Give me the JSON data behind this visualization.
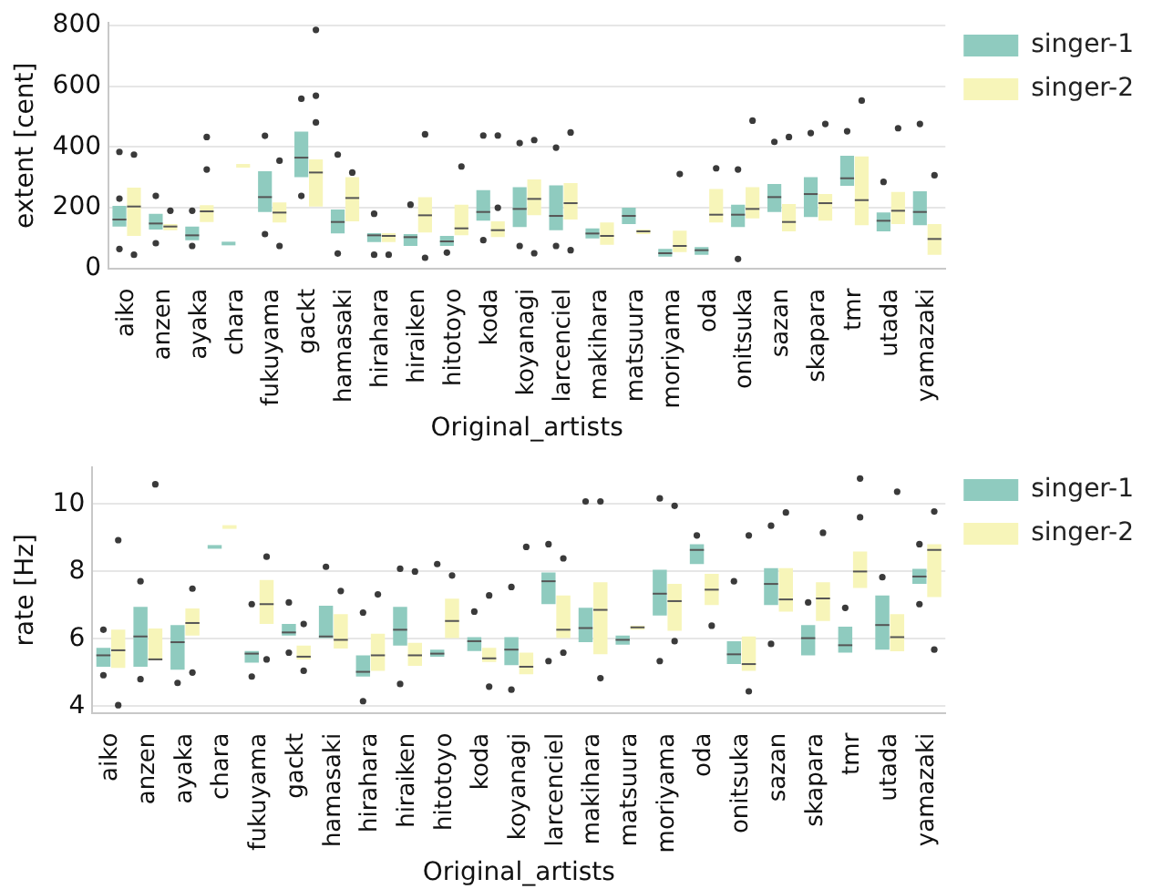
{
  "chart_data": [
    {
      "type": "box",
      "ylabel": "extent [cent]",
      "xlabel": "Original_artists",
      "categories": [
        "aiko",
        "anzen",
        "ayaka",
        "chara",
        "fukuyama",
        "gackt",
        "hamasaki",
        "hirahara",
        "hiraiken",
        "hitotoyo",
        "koda",
        "koyanagi",
        "larcenciel",
        "makihara",
        "matsuura",
        "moriyama",
        "oda",
        "onitsuka",
        "sazan",
        "skapara",
        "tmr",
        "utada",
        "yamazaki"
      ],
      "ylim": [
        0,
        810
      ],
      "yticks": [
        0,
        200,
        400,
        600,
        800
      ],
      "grid": "y",
      "legend": "top right",
      "series": [
        {
          "name": "singer-1",
          "color": "#8fcbbf",
          "boxes": [
            {
              "low": 138,
              "q1": 138,
              "median": 161,
              "q3": 206,
              "high": 206,
              "outliers": [
                384,
                230,
                64
              ]
            },
            {
              "low": 128,
              "q1": 128,
              "median": 148,
              "q3": 180,
              "high": 180,
              "outliers": [
                239,
                83
              ]
            },
            {
              "low": 93,
              "q1": 93,
              "median": 109,
              "q3": 138,
              "high": 138,
              "outliers": [
                190,
                74
              ]
            },
            {
              "low": 82,
              "q1": 82,
              "median": 82,
              "q3": 82,
              "high": 82
            },
            {
              "low": 186,
              "q1": 186,
              "median": 235,
              "q3": 320,
              "high": 320,
              "outliers": [
                437,
                113
              ]
            },
            {
              "low": 301,
              "q1": 301,
              "median": 365,
              "q3": 451,
              "high": 451,
              "outliers": [
                559,
                239
              ]
            },
            {
              "low": 115,
              "q1": 115,
              "median": 153,
              "q3": 194,
              "high": 194,
              "outliers": [
                375,
                49
              ]
            },
            {
              "low": 87,
              "q1": 87,
              "median": 109,
              "q3": 116,
              "high": 116,
              "outliers": [
                180,
                45
              ]
            },
            {
              "low": 74,
              "q1": 74,
              "median": 103,
              "q3": 113,
              "high": 113,
              "outliers": [
                210
              ]
            },
            {
              "low": 74,
              "q1": 74,
              "median": 89,
              "q3": 107,
              "high": 107,
              "outliers": [
                52
              ]
            },
            {
              "low": 157,
              "q1": 157,
              "median": 186,
              "q3": 258,
              "high": 258,
              "outliers": [
                438,
                93
              ]
            },
            {
              "low": 136,
              "q1": 136,
              "median": 196,
              "q3": 268,
              "high": 268,
              "outliers": [
                413,
                74
              ]
            },
            {
              "low": 126,
              "q1": 126,
              "median": 173,
              "q3": 274,
              "high": 274,
              "outliers": [
                398,
                74
              ]
            },
            {
              "low": 99,
              "q1": 99,
              "median": 115,
              "q3": 132,
              "high": 132
            },
            {
              "low": 146,
              "q1": 146,
              "median": 173,
              "q3": 200,
              "high": 200
            },
            {
              "low": 39,
              "q1": 39,
              "median": 50,
              "q3": 64,
              "high": 64
            },
            {
              "low": 45,
              "q1": 45,
              "median": 60,
              "q3": 70,
              "high": 70
            },
            {
              "low": 136,
              "q1": 136,
              "median": 177,
              "q3": 210,
              "high": 210,
              "outliers": [
                326,
                31
              ]
            },
            {
              "low": 186,
              "q1": 186,
              "median": 235,
              "q3": 278,
              "high": 278,
              "outliers": [
                417
              ]
            },
            {
              "low": 169,
              "q1": 169,
              "median": 245,
              "q3": 301,
              "high": 301,
              "outliers": [
                446
              ]
            },
            {
              "low": 272,
              "q1": 272,
              "median": 297,
              "q3": 371,
              "high": 371,
              "outliers": [
                452
              ]
            },
            {
              "low": 122,
              "q1": 122,
              "median": 157,
              "q3": 184,
              "high": 184,
              "outliers": [
                285
              ]
            },
            {
              "low": 142,
              "q1": 142,
              "median": 186,
              "q3": 254,
              "high": 254,
              "outliers": [
                476
              ]
            }
          ]
        },
        {
          "name": "singer-2",
          "color": "#f7f5b9",
          "boxes": [
            {
              "low": 107,
              "q1": 107,
              "median": 204,
              "q3": 266,
              "high": 266,
              "outliers": [
                375,
                45
              ]
            },
            {
              "low": 126,
              "q1": 126,
              "median": 138,
              "q3": 146,
              "high": 146,
              "outliers": [
                190
              ]
            },
            {
              "low": 153,
              "q1": 153,
              "median": 188,
              "q3": 208,
              "high": 208,
              "outliers": [
                433,
                326
              ]
            },
            {
              "low": 338,
              "q1": 338,
              "median": 338,
              "q3": 338,
              "high": 338
            },
            {
              "low": 151,
              "q1": 151,
              "median": 184,
              "q3": 217,
              "high": 217,
              "outliers": [
                355,
                74
              ]
            },
            {
              "low": 204,
              "q1": 204,
              "median": 316,
              "q3": 359,
              "high": 359,
              "outliers": [
                786,
                569,
                481
              ]
            },
            {
              "low": 155,
              "q1": 155,
              "median": 232,
              "q3": 301,
              "high": 301,
              "outliers": [
                316
              ]
            },
            {
              "low": 87,
              "q1": 87,
              "median": 107,
              "q3": 116,
              "high": 116,
              "outliers": [
                45
              ]
            },
            {
              "low": 118,
              "q1": 118,
              "median": 175,
              "q3": 235,
              "high": 235,
              "outliers": [
                442,
                35
              ]
            },
            {
              "low": 109,
              "q1": 109,
              "median": 132,
              "q3": 210,
              "high": 210,
              "outliers": [
                336
              ]
            },
            {
              "low": 103,
              "q1": 103,
              "median": 126,
              "q3": 155,
              "high": 155,
              "outliers": [
                438,
                200
              ]
            },
            {
              "low": 175,
              "q1": 175,
              "median": 229,
              "q3": 293,
              "high": 293,
              "outliers": [
                423,
                50
              ]
            },
            {
              "low": 161,
              "q1": 161,
              "median": 215,
              "q3": 281,
              "high": 281,
              "outliers": [
                448,
                60
              ]
            },
            {
              "low": 78,
              "q1": 78,
              "median": 107,
              "q3": 151,
              "high": 151
            },
            {
              "low": 113,
              "q1": 113,
              "median": 122,
              "q3": 128,
              "high": 128
            },
            {
              "low": 54,
              "q1": 54,
              "median": 74,
              "q3": 124,
              "high": 124,
              "outliers": [
                311
              ]
            },
            {
              "low": 151,
              "q1": 151,
              "median": 177,
              "q3": 262,
              "high": 262,
              "outliers": [
                330
              ]
            },
            {
              "low": 165,
              "q1": 165,
              "median": 196,
              "q3": 268,
              "high": 268,
              "outliers": [
                487
              ]
            },
            {
              "low": 122,
              "q1": 122,
              "median": 153,
              "q3": 212,
              "high": 212,
              "outliers": [
                433
              ]
            },
            {
              "low": 157,
              "q1": 157,
              "median": 215,
              "q3": 245,
              "high": 245,
              "outliers": [
                476
              ]
            },
            {
              "low": 142,
              "q1": 142,
              "median": 225,
              "q3": 369,
              "high": 369,
              "outliers": [
                553
              ]
            },
            {
              "low": 146,
              "q1": 146,
              "median": 190,
              "q3": 252,
              "high": 252,
              "outliers": [
                462
              ]
            },
            {
              "low": 45,
              "q1": 45,
              "median": 97,
              "q3": 146,
              "high": 146,
              "outliers": [
                307
              ]
            }
          ]
        }
      ]
    },
    {
      "type": "box",
      "ylabel": "rate [Hz]",
      "xlabel": "Original_artists",
      "categories": [
        "aiko",
        "anzen",
        "ayaka",
        "chara",
        "fukuyama",
        "gackt",
        "hamasaki",
        "hirahara",
        "hiraiken",
        "hitotoyo",
        "koda",
        "koyanagi",
        "larcenciel",
        "makihara",
        "matsuura",
        "moriyama",
        "oda",
        "onitsuka",
        "sazan",
        "skapara",
        "tmr",
        "utada",
        "yamazaki"
      ],
      "ylim": [
        3.8,
        11.1
      ],
      "yticks": [
        4,
        6,
        8,
        10
      ],
      "grid": "y",
      "legend": "top right",
      "series": [
        {
          "name": "singer-1",
          "color": "#8fcbbf",
          "boxes": [
            {
              "low": 5.17,
              "q1": 5.17,
              "median": 5.51,
              "q3": 5.73,
              "high": 5.73,
              "outliers": [
                6.27,
                4.92
              ]
            },
            {
              "low": 5.17,
              "q1": 5.17,
              "median": 6.07,
              "q3": 6.95,
              "high": 6.95,
              "outliers": [
                7.71,
                4.8
              ]
            },
            {
              "low": 5.08,
              "q1": 5.08,
              "median": 5.9,
              "q3": 6.41,
              "high": 6.41,
              "outliers": [
                4.69
              ]
            },
            {
              "low": 8.73,
              "q1": 8.73,
              "median": 8.73,
              "q3": 8.73,
              "high": 8.73
            },
            {
              "low": 5.29,
              "q1": 5.29,
              "median": 5.56,
              "q3": 5.64,
              "high": 5.64,
              "outliers": [
                7.03,
                4.88
              ]
            },
            {
              "low": 6.1,
              "q1": 6.1,
              "median": 6.19,
              "q3": 6.44,
              "high": 6.44,
              "outliers": [
                7.08,
                5.59
              ]
            },
            {
              "low": 6.02,
              "q1": 6.02,
              "median": 6.07,
              "q3": 6.98,
              "high": 6.98,
              "outliers": [
                8.14
              ]
            },
            {
              "low": 4.88,
              "q1": 4.88,
              "median": 5.02,
              "q3": 5.51,
              "high": 5.51,
              "outliers": [
                6.78,
                4.15
              ]
            },
            {
              "low": 5.8,
              "q1": 5.8,
              "median": 6.27,
              "q3": 6.95,
              "high": 6.95,
              "outliers": [
                8.08,
                4.66
              ]
            },
            {
              "low": 5.47,
              "q1": 5.47,
              "median": 5.56,
              "q3": 5.68,
              "high": 5.68,
              "outliers": [
                8.22
              ]
            },
            {
              "low": 5.64,
              "q1": 5.64,
              "median": 5.93,
              "q3": 6.05,
              "high": 6.05,
              "outliers": [
                6.81
              ]
            },
            {
              "low": 5.22,
              "q1": 5.22,
              "median": 5.68,
              "q3": 6.05,
              "high": 6.05,
              "outliers": [
                7.54,
                4.49
              ]
            },
            {
              "low": 7.03,
              "q1": 7.03,
              "median": 7.71,
              "q3": 7.97,
              "high": 7.97,
              "outliers": [
                8.81,
                5.34
              ]
            },
            {
              "low": 5.9,
              "q1": 5.9,
              "median": 6.32,
              "q3": 6.92,
              "high": 6.92,
              "outliers": [
                10.08
              ]
            },
            {
              "low": 5.83,
              "q1": 5.83,
              "median": 5.97,
              "q3": 6.1,
              "high": 6.1
            },
            {
              "low": 6.69,
              "q1": 6.69,
              "median": 7.34,
              "q3": 8.05,
              "high": 8.05,
              "outliers": [
                10.17,
                5.34
              ]
            },
            {
              "low": 8.22,
              "q1": 8.22,
              "median": 8.64,
              "q3": 8.81,
              "high": 8.81,
              "outliers": [
                9.07
              ]
            },
            {
              "low": 5.25,
              "q1": 5.25,
              "median": 5.54,
              "q3": 5.93,
              "high": 5.93,
              "outliers": [
                7.71
              ]
            },
            {
              "low": 7.0,
              "q1": 7.0,
              "median": 7.63,
              "q3": 8.1,
              "high": 8.1,
              "outliers": [
                9.36,
                5.85
              ]
            },
            {
              "low": 5.51,
              "q1": 5.51,
              "median": 6.02,
              "q3": 6.41,
              "high": 6.41,
              "outliers": [
                7.08
              ]
            },
            {
              "low": 5.59,
              "q1": 5.59,
              "median": 5.81,
              "q3": 6.36,
              "high": 6.36,
              "outliers": [
                6.92
              ]
            },
            {
              "low": 5.68,
              "q1": 5.68,
              "median": 6.41,
              "q3": 7.29,
              "high": 7.29,
              "outliers": [
                7.83
              ]
            },
            {
              "low": 7.63,
              "q1": 7.63,
              "median": 7.85,
              "q3": 8.08,
              "high": 8.08,
              "outliers": [
                8.81,
                7.03
              ]
            }
          ]
        },
        {
          "name": "singer-2",
          "color": "#f7f5b9",
          "boxes": [
            {
              "low": 5.14,
              "q1": 5.14,
              "median": 5.66,
              "q3": 6.27,
              "high": 6.27,
              "outliers": [
                8.93,
                4.03
              ]
            },
            {
              "low": 5.37,
              "q1": 5.37,
              "median": 5.39,
              "q3": 6.31,
              "high": 6.31,
              "outliers": [
                10.59
              ]
            },
            {
              "low": 6.1,
              "q1": 6.1,
              "median": 6.47,
              "q3": 6.9,
              "high": 6.9,
              "outliers": [
                7.49,
                5.0
              ]
            },
            {
              "low": 9.32,
              "q1": 9.32,
              "median": 9.32,
              "q3": 9.32,
              "high": 9.32
            },
            {
              "low": 6.44,
              "q1": 6.44,
              "median": 7.03,
              "q3": 7.75,
              "high": 7.75,
              "outliers": [
                8.44,
                5.39
              ]
            },
            {
              "low": 5.39,
              "q1": 5.39,
              "median": 5.47,
              "q3": 5.8,
              "high": 5.8,
              "outliers": [
                6.44,
                5.05
              ]
            },
            {
              "low": 5.71,
              "q1": 5.71,
              "median": 5.97,
              "q3": 6.73,
              "high": 6.73,
              "outliers": [
                7.42
              ]
            },
            {
              "low": 5.05,
              "q1": 5.05,
              "median": 5.51,
              "q3": 6.15,
              "high": 6.15,
              "outliers": [
                7.32
              ]
            },
            {
              "low": 5.2,
              "q1": 5.2,
              "median": 5.51,
              "q3": 5.88,
              "high": 5.88,
              "outliers": [
                8.0
              ]
            },
            {
              "low": 6.02,
              "q1": 6.02,
              "median": 6.53,
              "q3": 7.19,
              "high": 7.19,
              "outliers": [
                7.88
              ]
            },
            {
              "low": 5.31,
              "q1": 5.31,
              "median": 5.42,
              "q3": 5.73,
              "high": 5.73,
              "outliers": [
                7.29,
                4.58
              ]
            },
            {
              "low": 4.95,
              "q1": 4.95,
              "median": 5.17,
              "q3": 5.59,
              "high": 5.59,
              "outliers": [
                8.73
              ]
            },
            {
              "low": 6.02,
              "q1": 6.02,
              "median": 6.27,
              "q3": 7.29,
              "high": 7.29,
              "outliers": [
                8.39,
                5.59
              ]
            },
            {
              "low": 5.54,
              "q1": 5.54,
              "median": 6.86,
              "q3": 7.68,
              "high": 7.68,
              "outliers": [
                10.08,
                4.83
              ]
            },
            {
              "low": 6.27,
              "q1": 6.27,
              "median": 6.34,
              "q3": 6.39,
              "high": 6.39
            },
            {
              "low": 6.24,
              "q1": 6.24,
              "median": 7.12,
              "q3": 7.63,
              "high": 7.63,
              "outliers": [
                9.95,
                5.93
              ]
            },
            {
              "low": 7.0,
              "q1": 7.0,
              "median": 7.46,
              "q3": 7.93,
              "high": 7.93,
              "outliers": [
                6.39
              ]
            },
            {
              "low": 5.05,
              "q1": 5.05,
              "median": 5.25,
              "q3": 6.07,
              "high": 6.07,
              "outliers": [
                9.07,
                4.44
              ]
            },
            {
              "low": 6.81,
              "q1": 6.81,
              "median": 7.17,
              "q3": 8.1,
              "high": 8.1,
              "outliers": [
                9.75
              ]
            },
            {
              "low": 6.53,
              "q1": 6.53,
              "median": 7.2,
              "q3": 7.68,
              "high": 7.68,
              "outliers": [
                9.15
              ]
            },
            {
              "low": 7.51,
              "q1": 7.51,
              "median": 8.0,
              "q3": 8.59,
              "high": 8.59,
              "outliers": [
                10.76,
                9.61
              ]
            },
            {
              "low": 5.63,
              "q1": 5.63,
              "median": 6.05,
              "q3": 6.73,
              "high": 6.73,
              "outliers": [
                10.37
              ]
            },
            {
              "low": 7.24,
              "q1": 7.24,
              "median": 8.64,
              "q3": 8.81,
              "high": 8.81,
              "outliers": [
                9.78,
                5.68
              ]
            }
          ]
        }
      ]
    }
  ]
}
